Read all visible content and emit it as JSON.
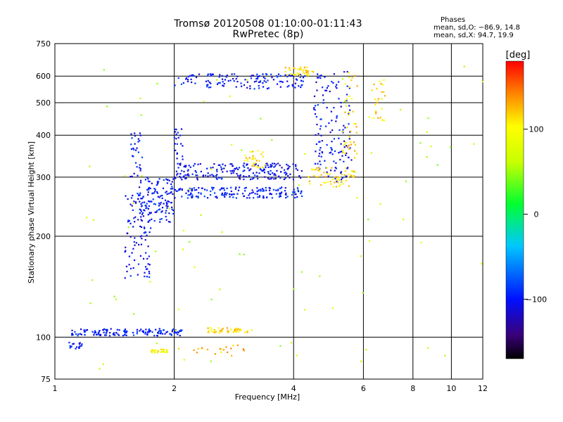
{
  "header": {
    "line1": "Tromsø 20120508 01:10:00-01:11:43",
    "line2": "RwPretec (8p)"
  },
  "phases": {
    "title": "Phases",
    "o_line": "mean, sd,O: −86.9, 14.8",
    "x_line": "mean, sd,X:  94.7, 19.9"
  },
  "colorbar": {
    "label": "[deg]",
    "ticks": [
      "100",
      "0",
      "−100"
    ],
    "tick_values": [
      100,
      0,
      -100
    ],
    "range": [
      -170,
      180
    ]
  },
  "chart_data": {
    "type": "scatter",
    "title": "Tromsø 20120508 01:10:00-01:11:43",
    "subtitle": "RwPretec (8p)",
    "xlabel": "Frequency [MHz]",
    "ylabel": "Stationary phase Virtual Height [km]",
    "xlim": [
      1,
      12
    ],
    "ylim": [
      75,
      750
    ],
    "xscale": "log",
    "yscale": "log",
    "grid": true,
    "xticks": [
      1,
      2,
      4,
      6,
      8,
      10,
      12
    ],
    "yticks": [
      75,
      100,
      200,
      300,
      400,
      500,
      600,
      750
    ],
    "x_gridlines": [
      2,
      4,
      6,
      8,
      10
    ],
    "y_gridlines": [
      100,
      200,
      300,
      400,
      500,
      600
    ],
    "colorbar_label": "[deg]",
    "color_range": [
      -170,
      180
    ],
    "series": [
      {
        "x_range": [
          1.07,
          1.17
        ],
        "y_range": [
          92,
          97
        ],
        "count": 18,
        "phase": -100
      },
      {
        "x_range": [
          1.1,
          2.1
        ],
        "y_range": [
          101,
          106
        ],
        "count": 140,
        "phase": -98
      },
      {
        "x_range": [
          1.5,
          1.75
        ],
        "y_range": [
          150,
          270
        ],
        "count": 90,
        "phase": -105
      },
      {
        "x_range": [
          1.55,
          1.68
        ],
        "y_range": [
          300,
          420
        ],
        "count": 30,
        "phase": -100
      },
      {
        "x_range": [
          1.62,
          2.0
        ],
        "y_range": [
          220,
          300
        ],
        "count": 130,
        "phase": -100
      },
      {
        "x_range": [
          2.0,
          4.2
        ],
        "y_range": [
          260,
          280
        ],
        "count": 170,
        "phase": -95
      },
      {
        "x_range": [
          2.0,
          4.2
        ],
        "y_range": [
          295,
          330
        ],
        "count": 200,
        "phase": -105
      },
      {
        "x_range": [
          2.0,
          2.1
        ],
        "y_range": [
          330,
          420
        ],
        "count": 20,
        "phase": -105
      },
      {
        "x_range": [
          2.0,
          4.3
        ],
        "y_range": [
          550,
          610
        ],
        "count": 140,
        "phase": -100
      },
      {
        "x_range": [
          3.0,
          3.4
        ],
        "y_range": [
          320,
          360
        ],
        "count": 30,
        "phase": 110
      },
      {
        "x_range": [
          3.8,
          4.5
        ],
        "y_range": [
          600,
          640
        ],
        "count": 40,
        "phase": 110
      },
      {
        "x_range": [
          4.5,
          5.6
        ],
        "y_range": [
          290,
          620
        ],
        "count": 140,
        "phase": -105
      },
      {
        "x_range": [
          4.3,
          5.7
        ],
        "y_range": [
          280,
          320
        ],
        "count": 60,
        "phase": 110
      },
      {
        "x_range": [
          5.3,
          5.8
        ],
        "y_range": [
          340,
          620
        ],
        "count": 40,
        "phase": 110
      },
      {
        "x_range": [
          2.4,
          3.1
        ],
        "y_range": [
          103,
          107
        ],
        "count": 45,
        "phase": 115
      },
      {
        "x_range": [
          1.75,
          1.92
        ],
        "y_range": [
          90,
          92
        ],
        "count": 25,
        "phase": 95
      },
      {
        "x_range": [
          2.05,
          3.05
        ],
        "y_range": [
          88,
          95
        ],
        "count": 20,
        "phase": 125
      },
      {
        "x_range": [
          6.3,
          6.8
        ],
        "y_range": [
          440,
          600
        ],
        "count": 25,
        "phase": 110
      },
      {
        "x_range": [
          1.2,
          12.0
        ],
        "y_range": [
          80,
          660
        ],
        "count": 90,
        "phase": 60
      }
    ]
  }
}
